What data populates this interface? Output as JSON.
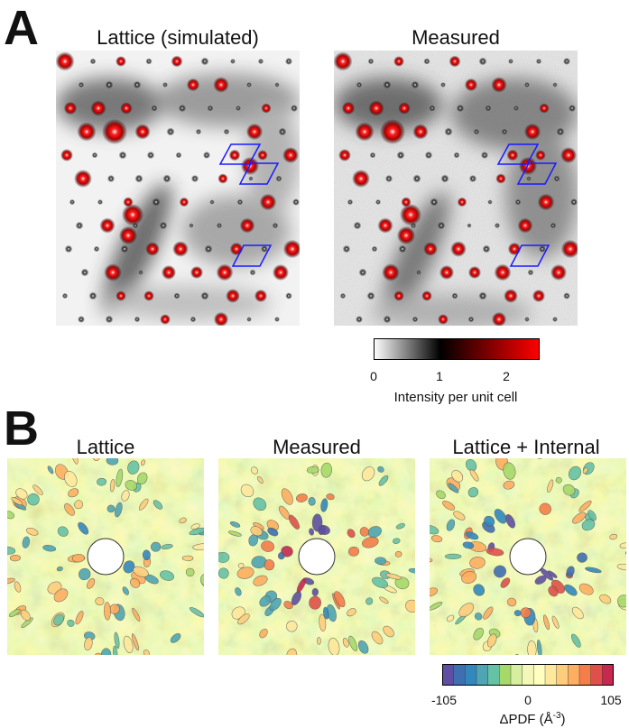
{
  "panel_a": {
    "letter": "A",
    "left_title": "Lattice (simulated)",
    "right_title": "Measured",
    "colorbar": {
      "ticks": [
        "0",
        "1",
        "2"
      ],
      "label": "Intensity per unit cell",
      "colors": [
        "#ffffff",
        "#000000",
        "#ff0000"
      ]
    }
  },
  "panel_b": {
    "letter": "B",
    "titles": [
      "Lattice",
      "Measured",
      "Lattice + Internal"
    ],
    "colorbar": {
      "tick_min": "-105",
      "tick_mid": "0",
      "tick_max": "105",
      "label": "ΔPDF (Å",
      "label_exp": "-3",
      "label_close": ")",
      "colors": [
        "#5e4fa2",
        "#3f6fb1",
        "#3288bd",
        "#4fa5b3",
        "#66c2a5",
        "#a6d96a",
        "#d7ee9f",
        "#f3f7b8",
        "#ffffbf",
        "#fee89c",
        "#fdcd7c",
        "#fdae61",
        "#f47d4a",
        "#e0504a",
        "#c6294f"
      ]
    }
  }
}
